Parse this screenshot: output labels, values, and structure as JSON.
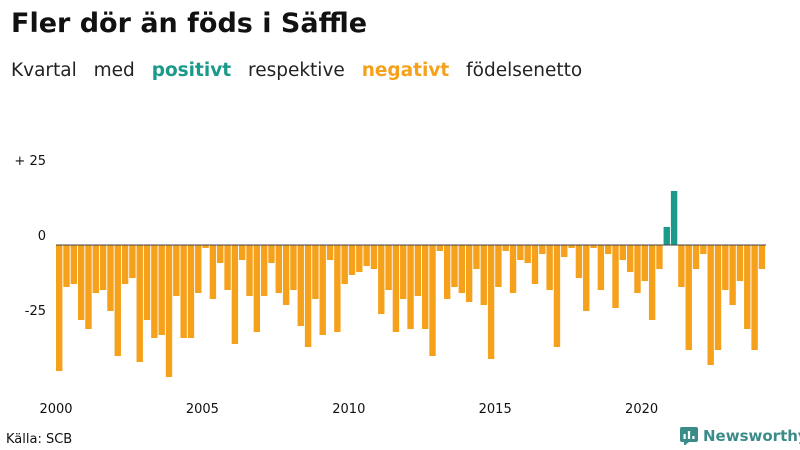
{
  "header": {
    "title": "Fler dör än föds i Säffle",
    "subtitle_words": [
      "Kvartal",
      "med",
      "positivt",
      "respektive",
      "negativt",
      "födelsenetto"
    ]
  },
  "footer": {
    "source": "Källa: SCB",
    "brand": "Newsworthy"
  },
  "colors": {
    "positive": "#1a9a8b",
    "negative": "#f6a11c",
    "zero_line": "#444444",
    "brand": "#3b8c89"
  },
  "chart_data": {
    "type": "bar",
    "title": "Fler dör än föds i Säffle",
    "subtitle": "Kvartal med positivt respektive negativt födelsenetto",
    "xlabel": "",
    "ylabel": "",
    "ylim": [
      -45,
      30
    ],
    "y_ticks": [
      {
        "value": 25,
        "label": "+ 25"
      },
      {
        "value": 0,
        "label": "0"
      },
      {
        "value": -25,
        "label": "-25"
      }
    ],
    "x_ticks": [
      {
        "value": 2000,
        "label": "2000"
      },
      {
        "value": 2005,
        "label": "2005"
      },
      {
        "value": 2010,
        "label": "2010"
      },
      {
        "value": 2015,
        "label": "2015"
      },
      {
        "value": 2020,
        "label": "2020"
      }
    ],
    "start_year": 2000,
    "quarters_per_year": 4,
    "values": [
      -42,
      -14,
      -13,
      -25,
      -28,
      -16,
      -15,
      -22,
      -37,
      -13,
      -11,
      -39,
      -25,
      -31,
      -30,
      -44,
      -17,
      -31,
      -31,
      -16,
      -1,
      -18,
      -6,
      -15,
      -33,
      -5,
      -17,
      -29,
      -17,
      -6,
      -16,
      -20,
      -15,
      -27,
      -34,
      -18,
      -30,
      -5,
      -29,
      -13,
      -10,
      -9,
      -7,
      -8,
      -23,
      -15,
      -29,
      -18,
      -28,
      -17,
      -28,
      -37,
      -2,
      -18,
      -14,
      -16,
      -19,
      -8,
      -20,
      -38,
      -14,
      -2,
      -16,
      -5,
      -6,
      -13,
      -3,
      -15,
      -34,
      -4,
      -1,
      -11,
      -22,
      -1,
      -15,
      -3,
      -21,
      -5,
      -9,
      -16,
      -12,
      -25,
      -8,
      6,
      18,
      -14,
      -35,
      -8,
      -3,
      -40,
      -35,
      -15,
      -20,
      -12,
      -28,
      -35,
      -8
    ]
  }
}
